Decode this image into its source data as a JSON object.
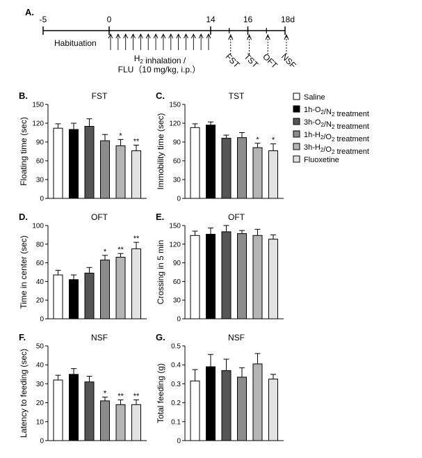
{
  "figure_label": "A.",
  "timeline": {
    "ticks": [
      {
        "label": "-5",
        "day": -5
      },
      {
        "label": "0",
        "day": 0
      },
      {
        "label": "14",
        "day": 14
      },
      {
        "label": "16",
        "day": 16
      },
      {
        "label": "18d",
        "day": 18
      }
    ],
    "habituation_label": "Habituation",
    "treatment_label_line1": "H2 inhalation /",
    "treatment_label_line2": "FLU（10 mg/kg, i.p.）",
    "tests": [
      {
        "label": "FST",
        "day": 15
      },
      {
        "label": "TST",
        "day": 16
      },
      {
        "label": "OFT",
        "day": 17
      },
      {
        "label": "NSF",
        "day": 18
      }
    ]
  },
  "legend": [
    {
      "label": "Saline",
      "color": "#ffffff"
    },
    {
      "label": "1h-O2/N2 treatment",
      "color": "#000000"
    },
    {
      "label": "3h-O2/N2 treatment",
      "color": "#555555"
    },
    {
      "label": "1h-H2/O2 treatment",
      "color": "#8c8c8c"
    },
    {
      "label": "3h-H2/O2 treatment",
      "color": "#b4b4b4"
    },
    {
      "label": "Fluoxetine",
      "color": "#e2e2e2"
    }
  ],
  "chart_data": [
    {
      "panel": "B.",
      "type": "bar",
      "title": "FST",
      "ylabel": "Floating time (sec)",
      "ylim": [
        0,
        150
      ],
      "yticks": [
        0,
        30,
        60,
        90,
        120,
        150
      ],
      "categories": [
        "Saline",
        "1h-O2/N2 treatment",
        "3h-O2/N2 treatment",
        "1h-H2/O2 treatment",
        "3h-H2/O2 treatment",
        "Fluoxetine"
      ],
      "values": [
        112,
        110,
        115,
        92,
        84,
        76
      ],
      "errors": [
        7,
        10,
        12,
        10,
        10,
        9
      ],
      "significance": [
        "",
        "",
        "",
        "",
        "*",
        "**"
      ]
    },
    {
      "panel": "C.",
      "type": "bar",
      "title": "TST",
      "ylabel": "Immobility time (sec)",
      "ylim": [
        0,
        150
      ],
      "yticks": [
        0,
        30,
        60,
        90,
        120,
        150
      ],
      "categories": [
        "Saline",
        "1h-O2/N2 treatment",
        "3h-O2/N2 treatment",
        "1h-H2/O2 treatment",
        "3h-H2/O2 treatment",
        "Fluoxetine"
      ],
      "values": [
        113,
        117,
        96,
        97,
        81,
        76
      ],
      "errors": [
        6,
        5,
        5,
        8,
        7,
        11
      ],
      "significance": [
        "",
        "",
        "",
        "",
        "*",
        "*"
      ]
    },
    {
      "panel": "D.",
      "type": "bar",
      "title": "OFT",
      "ylabel": "Time in center (sec)",
      "ylim": [
        0,
        100
      ],
      "yticks": [
        0,
        20,
        40,
        60,
        80,
        100
      ],
      "categories": [
        "Saline",
        "1h-O2/N2 treatment",
        "3h-O2/N2 treatment",
        "1h-H2/O2 treatment",
        "3h-H2/O2 treatment",
        "Fluoxetine"
      ],
      "values": [
        47,
        42,
        49,
        63,
        66,
        75
      ],
      "errors": [
        5,
        5,
        6,
        5,
        4,
        7
      ],
      "significance": [
        "",
        "",
        "",
        "*",
        "**",
        "**"
      ]
    },
    {
      "panel": "E.",
      "type": "bar",
      "title": "OFT",
      "ylabel": "Crossing in 5 min",
      "ylim": [
        0,
        150
      ],
      "yticks": [
        0,
        30,
        60,
        90,
        120,
        150
      ],
      "categories": [
        "Saline",
        "1h-O2/N2 treatment",
        "3h-O2/N2 treatment",
        "1h-H2/O2 treatment",
        "3h-H2/O2 treatment",
        "Fluoxetine"
      ],
      "values": [
        134,
        136,
        140,
        137,
        134,
        128
      ],
      "errors": [
        7,
        10,
        10,
        5,
        10,
        7
      ],
      "significance": [
        "",
        "",
        "",
        "",
        "",
        ""
      ]
    },
    {
      "panel": "F.",
      "type": "bar",
      "title": "NSF",
      "ylabel": "Latency to feeding (sec)",
      "ylim": [
        0,
        50
      ],
      "yticks": [
        0,
        10,
        20,
        30,
        40,
        50
      ],
      "categories": [
        "Saline",
        "1h-O2/N2 treatment",
        "3h-O2/N2 treatment",
        "1h-H2/O2 treatment",
        "3h-H2/O2 treatment",
        "Fluoxetine"
      ],
      "values": [
        32,
        35,
        31,
        21,
        19,
        19
      ],
      "errors": [
        2.5,
        3,
        3,
        2,
        2.5,
        2.5
      ],
      "significance": [
        "",
        "",
        "",
        "*",
        "**",
        "**"
      ]
    },
    {
      "panel": "G.",
      "type": "bar",
      "title": "NSF",
      "ylabel": "Total feeding (g)",
      "ylim": [
        0,
        0.5
      ],
      "yticks": [
        0,
        0.1,
        0.2,
        0.3,
        0.4,
        0.5
      ],
      "categories": [
        "Saline",
        "1h-O2/N2 treatment",
        "3h-O2/N2 treatment",
        "1h-H2/O2 treatment",
        "3h-H2/O2 treatment",
        "Fluoxetine"
      ],
      "values": [
        0.315,
        0.39,
        0.37,
        0.335,
        0.405,
        0.325
      ],
      "errors": [
        0.06,
        0.065,
        0.06,
        0.05,
        0.055,
        0.025
      ],
      "significance": [
        "",
        "",
        "",
        "",
        "",
        ""
      ]
    }
  ]
}
